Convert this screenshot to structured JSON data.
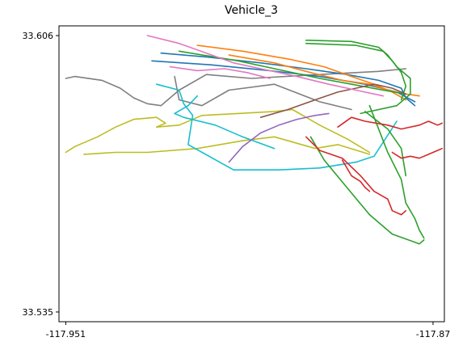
{
  "chart_data": {
    "type": "line",
    "title": "Vehicle_3",
    "xlabel": "",
    "ylabel": "",
    "xlim": [
      -117.9525,
      -117.8675
    ],
    "ylim": [
      33.5325,
      33.6085
    ],
    "x_ticks": [
      {
        "value": -117.951,
        "label": "-117.951"
      },
      {
        "value": -117.87,
        "label": "-117.87"
      }
    ],
    "y_ticks": [
      {
        "value": 33.606,
        "label": "33.606"
      },
      {
        "value": 33.535,
        "label": "33.535"
      }
    ],
    "grid": false,
    "legend": "none",
    "series": [
      {
        "color": "#7f7f7f",
        "x": [
          -117.951,
          -117.949,
          -117.943,
          -117.939,
          -117.936,
          -117.933,
          -117.93,
          -117.926,
          -117.92,
          -117.91,
          -117.895,
          -117.882,
          -117.876
        ],
        "y": [
          33.595,
          33.5955,
          33.5945,
          33.5925,
          33.59,
          33.5885,
          33.588,
          33.592,
          33.596,
          33.595,
          33.596,
          33.5968,
          33.5975
        ]
      },
      {
        "color": "#7f7f7f",
        "x": [
          -117.927,
          -117.926,
          -117.921,
          -117.915,
          -117.905,
          -117.895,
          -117.888
        ],
        "y": [
          33.5955,
          33.5895,
          33.588,
          33.592,
          33.5935,
          33.589,
          33.587
        ]
      },
      {
        "color": "#bcbd22",
        "x": [
          -117.951,
          -117.949,
          -117.944,
          -117.94,
          -117.936,
          -117.931,
          -117.929,
          -117.931,
          -117.926,
          -117.921,
          -117.913,
          -117.905,
          -117.901,
          -117.895,
          -117.889,
          -117.884
        ],
        "y": [
          33.576,
          33.5775,
          33.58,
          33.5825,
          33.5845,
          33.585,
          33.5835,
          33.5825,
          33.583,
          33.5855,
          33.586,
          33.5865,
          33.587,
          33.583,
          33.5795,
          33.576
        ]
      },
      {
        "color": "#bcbd22",
        "x": [
          -117.947,
          -117.94,
          -117.933,
          -117.922,
          -117.912,
          -117.905,
          -117.896,
          -117.891,
          -117.884
        ],
        "y": [
          33.5755,
          33.576,
          33.576,
          33.577,
          33.579,
          33.58,
          33.577,
          33.578,
          33.5755
        ]
      },
      {
        "color": "#17becf",
        "x": [
          -117.931,
          -117.926,
          -117.925,
          -117.923,
          -117.924,
          -117.914,
          -117.904,
          -117.895,
          -117.887,
          -117.883,
          -117.878
        ],
        "y": [
          33.5935,
          33.592,
          33.5885,
          33.5855,
          33.578,
          33.5715,
          33.5715,
          33.572,
          33.5735,
          33.575,
          33.584
        ]
      },
      {
        "color": "#17becf",
        "x": [
          -117.922,
          -117.924,
          -117.927,
          -117.925,
          -117.918,
          -117.912,
          -117.905
        ],
        "y": [
          33.5905,
          33.588,
          33.586,
          33.585,
          33.583,
          33.58,
          33.577
        ]
      },
      {
        "color": "#1f77b4",
        "x": [
          -117.93,
          -117.92,
          -117.908,
          -117.898,
          -117.889,
          -117.882,
          -117.877,
          -117.876,
          -117.874
        ],
        "y": [
          33.6015,
          33.6005,
          33.599,
          33.5975,
          33.596,
          33.5945,
          33.5925,
          33.59,
          33.588
        ]
      },
      {
        "color": "#1f77b4",
        "x": [
          -117.932,
          -117.919,
          -117.906,
          -117.895,
          -117.885,
          -117.878,
          -117.874
        ],
        "y": [
          33.5995,
          33.5985,
          33.597,
          33.5955,
          33.5935,
          33.5915,
          33.589
        ]
      },
      {
        "color": "#ff7f0e",
        "x": [
          -117.922,
          -117.912,
          -117.902,
          -117.894,
          -117.888,
          -117.883,
          -117.879,
          -117.876
        ],
        "y": [
          33.6035,
          33.602,
          33.6,
          33.598,
          33.5955,
          33.5935,
          33.5915,
          33.5895
        ]
      },
      {
        "color": "#ff7f0e",
        "x": [
          -117.915,
          -117.905,
          -117.897,
          -117.89,
          -117.884,
          -117.88,
          -117.876,
          -117.873
        ],
        "y": [
          33.601,
          33.599,
          33.5965,
          33.5945,
          33.5935,
          33.592,
          33.591,
          33.5905
        ]
      },
      {
        "color": "#2ca02c",
        "x": [
          -117.898,
          -117.888,
          -117.882,
          -117.88,
          -117.878,
          -117.875,
          -117.875,
          -117.878,
          -117.886
        ],
        "y": [
          33.6048,
          33.6045,
          33.603,
          33.601,
          33.598,
          33.595,
          33.591,
          33.588,
          33.586
        ]
      },
      {
        "color": "#2ca02c",
        "x": [
          -117.898,
          -117.887,
          -117.881,
          -117.879,
          -117.877,
          -117.876,
          -117.877
        ],
        "y": [
          33.604,
          33.6035,
          33.602,
          33.5995,
          33.5965,
          33.593,
          33.5895
        ]
      },
      {
        "color": "#2ca02c",
        "x": [
          -117.926,
          -117.913,
          -117.903,
          -117.895,
          -117.888,
          -117.881,
          -117.876
        ],
        "y": [
          33.602,
          33.5995,
          33.597,
          33.595,
          33.5935,
          33.592,
          33.591
        ]
      },
      {
        "color": "#2ca02c",
        "x": [
          -117.897,
          -117.894,
          -117.889,
          -117.884,
          -117.879,
          -117.873,
          -117.872
        ],
        "y": [
          33.58,
          33.574,
          33.567,
          33.56,
          33.555,
          33.5525,
          33.5535
        ]
      },
      {
        "color": "#2ca02c",
        "x": [
          -117.884,
          -117.882,
          -117.88,
          -117.877,
          -117.876,
          -117.874,
          -117.873,
          -117.872
        ],
        "y": [
          33.588,
          33.582,
          33.576,
          33.569,
          33.563,
          33.559,
          33.556,
          33.554
        ]
      },
      {
        "color": "#2ca02c",
        "x": [
          -117.885,
          -117.88,
          -117.877,
          -117.876
        ],
        "y": [
          33.5865,
          33.582,
          33.577,
          33.57
        ]
      },
      {
        "color": "#d62728",
        "x": [
          -117.898,
          -117.895,
          -117.89,
          -117.886,
          -117.883,
          -117.88,
          -117.879,
          -117.877,
          -117.876
        ],
        "y": [
          33.58,
          33.5765,
          33.5745,
          33.57,
          33.566,
          33.564,
          33.561,
          33.56,
          33.561
        ]
      },
      {
        "color": "#d62728",
        "x": [
          -117.891,
          -117.888,
          -117.885,
          -117.88,
          -117.877,
          -117.873,
          -117.871,
          -117.869,
          -117.868
        ],
        "y": [
          33.5825,
          33.585,
          33.584,
          33.583,
          33.582,
          33.583,
          33.584,
          33.583,
          33.5835
        ]
      },
      {
        "color": "#d62728",
        "x": [
          -117.89,
          -117.888,
          -117.886,
          -117.885,
          -117.884
        ],
        "y": [
          33.574,
          33.57,
          33.5685,
          33.567,
          33.566
        ]
      },
      {
        "color": "#d62728",
        "x": [
          -117.879,
          -117.877,
          -117.875,
          -117.873,
          -117.871,
          -117.869,
          -117.868
        ],
        "y": [
          33.576,
          33.5745,
          33.575,
          33.5745,
          33.5755,
          33.5765,
          33.577
        ]
      },
      {
        "color": "#9467bd",
        "x": [
          -117.915,
          -117.912,
          -117.908,
          -117.904,
          -117.9,
          -117.896,
          -117.893
        ],
        "y": [
          33.5735,
          33.5775,
          33.581,
          33.583,
          33.5845,
          33.5855,
          33.586
        ]
      },
      {
        "color": "#8c564b",
        "x": [
          -117.908,
          -117.902,
          -117.896,
          -117.891,
          -117.887,
          -117.883,
          -117.879,
          -117.876
        ],
        "y": [
          33.585,
          33.587,
          33.5895,
          33.5915,
          33.5925,
          33.5935,
          33.5925,
          33.591
        ]
      },
      {
        "color": "#e377c2",
        "x": [
          -117.933,
          -117.926,
          -117.92,
          -117.914,
          -117.908,
          -117.9,
          -117.893,
          -117.887,
          -117.881
        ],
        "y": [
          33.606,
          33.604,
          33.6015,
          33.599,
          33.5975,
          33.5955,
          33.5935,
          33.592,
          33.5905
        ]
      },
      {
        "color": "#e377c2",
        "x": [
          -117.928,
          -117.922,
          -117.916,
          -117.911,
          -117.906
        ],
        "y": [
          33.598,
          33.597,
          33.5975,
          33.5965,
          33.595
        ]
      }
    ]
  }
}
